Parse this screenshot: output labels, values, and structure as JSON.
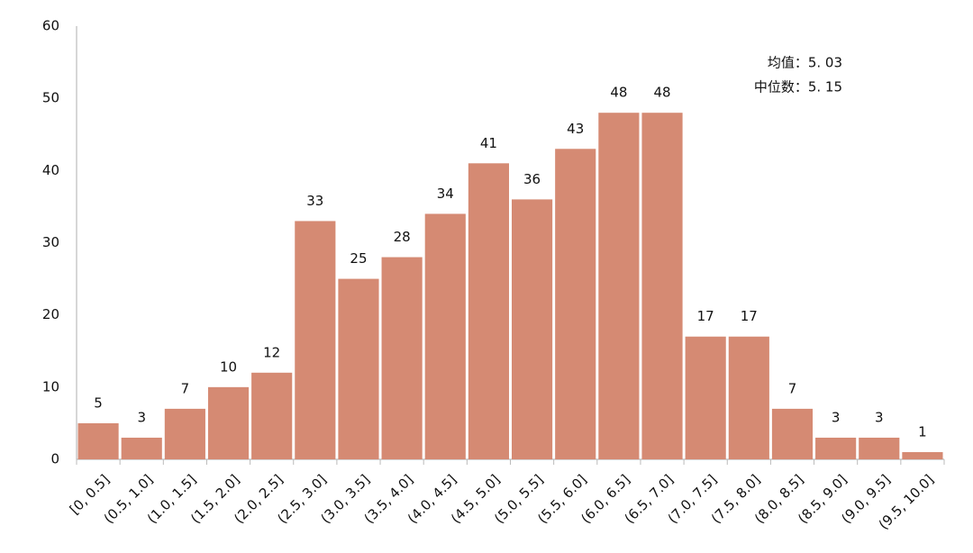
{
  "chart_data": {
    "type": "bar",
    "categories": [
      "[0, 0.5]",
      "(0.5, 1.0]",
      "(1.0, 1.5]",
      "(1.5, 2.0]",
      "(2.0, 2.5]",
      "(2.5, 3.0]",
      "(3.0, 3.5]",
      "(3.5, 4.0]",
      "(4.0, 4.5]",
      "(4.5, 5.0]",
      "(5.0, 5.5]",
      "(5.5, 6.0]",
      "(6.0, 6.5]",
      "(6.5, 7.0]",
      "(7.0, 7.5]",
      "(7.5, 8.0]",
      "(8.0, 8.5]",
      "(8.5, 9.0]",
      "(9.0, 9.5]",
      "(9.5, 10.0]"
    ],
    "values": [
      5,
      3,
      7,
      10,
      12,
      33,
      25,
      28,
      34,
      41,
      36,
      43,
      48,
      48,
      17,
      17,
      7,
      3,
      3,
      1
    ],
    "color": "#d58a73",
    "ylim": [
      0,
      60
    ],
    "yticks": [
      0,
      10,
      20,
      30,
      40,
      50,
      60
    ],
    "grid": false,
    "annotations": [
      "均值：5. 03",
      "中位数：5. 15"
    ]
  }
}
